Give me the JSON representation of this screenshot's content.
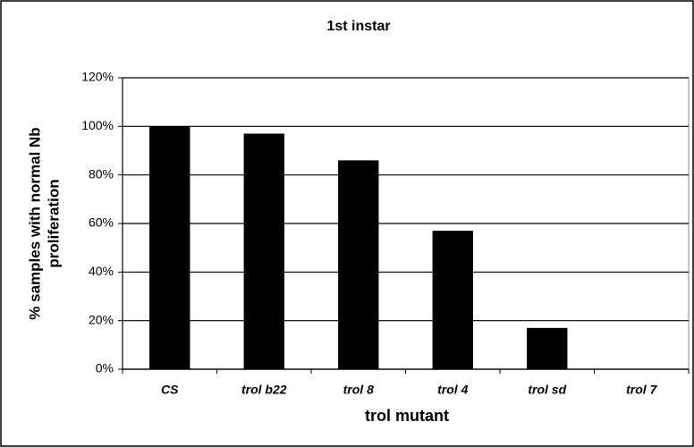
{
  "chart_data": {
    "type": "bar",
    "title": "1st instar",
    "xlabel": "trol mutant",
    "ylabel": [
      "% samples with normal Nb",
      "proliferation"
    ],
    "categories": [
      "CS",
      "trol b22",
      "trol 8",
      "trol 4",
      "trol sd",
      "trol 7"
    ],
    "values": [
      100,
      97,
      86,
      57,
      17,
      0
    ],
    "color": "#000000",
    "ylim": [
      0,
      120
    ],
    "yticks": [
      {
        "value": 0,
        "label": "0%"
      },
      {
        "value": 20,
        "label": "20%"
      },
      {
        "value": 40,
        "label": "40%"
      },
      {
        "value": 60,
        "label": "60%"
      },
      {
        "value": 80,
        "label": "80%"
      },
      {
        "value": 100,
        "label": "100%"
      },
      {
        "value": 120,
        "label": "120%"
      }
    ],
    "grid": true
  }
}
